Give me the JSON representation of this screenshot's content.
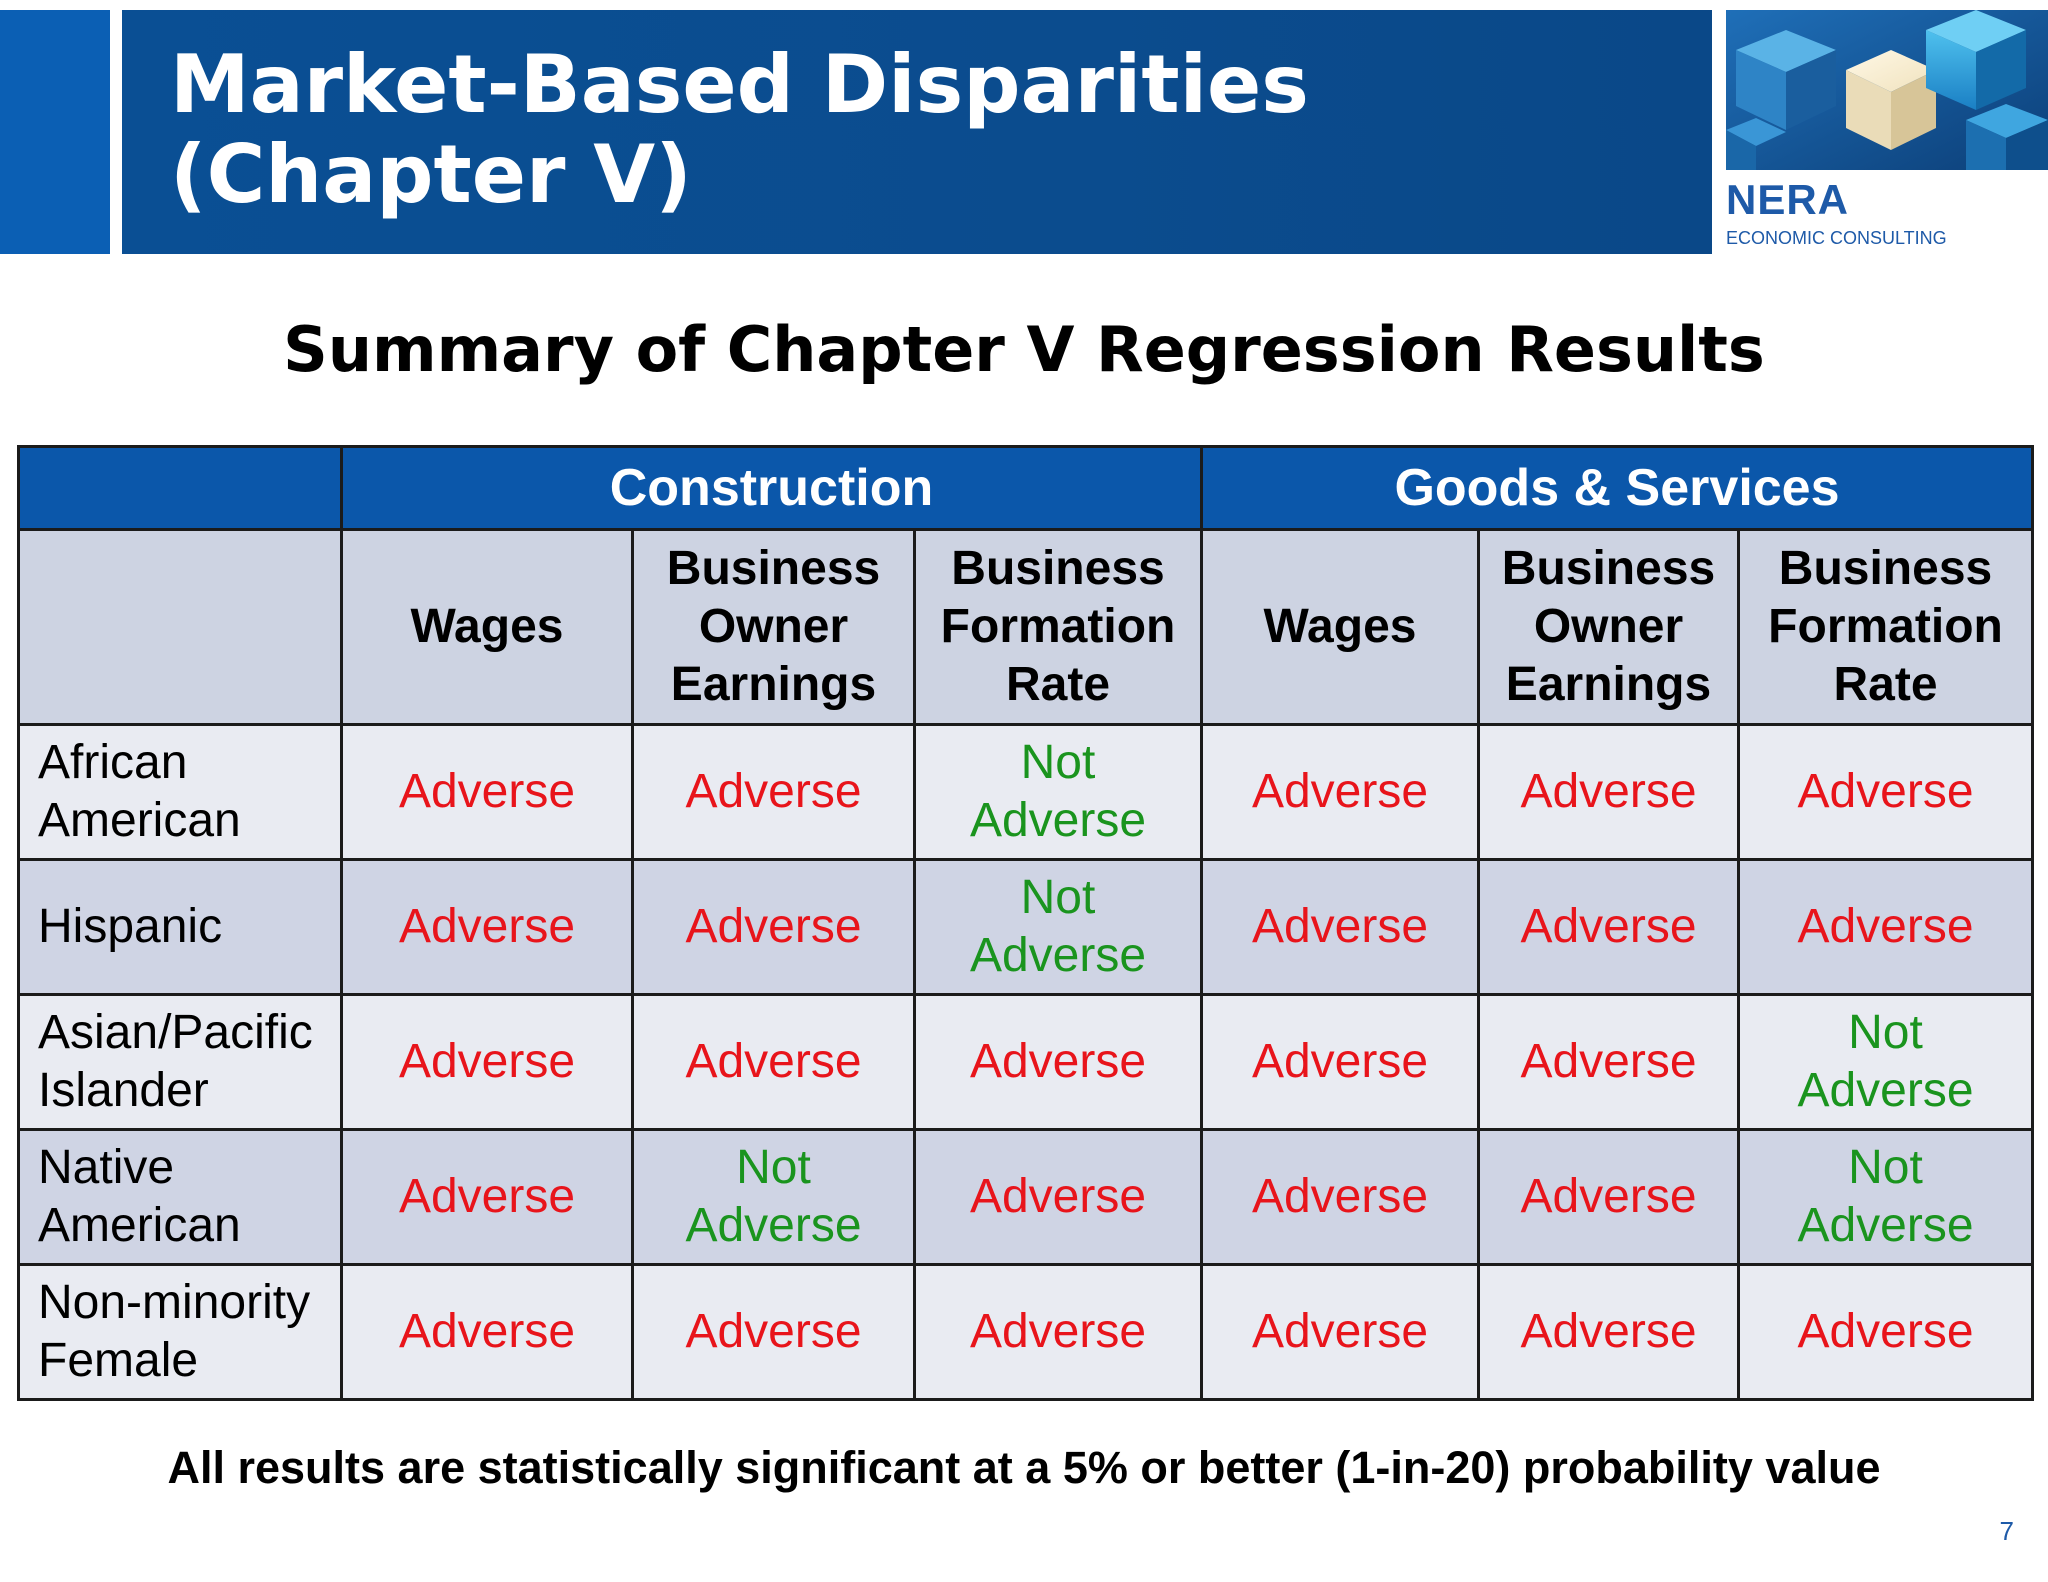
{
  "header": {
    "title": "Market-Based Disparities\n(Chapter V)",
    "accent_color": "#0b5fb4",
    "banner_color": "#0b4c8e"
  },
  "logo": {
    "name": "NERA",
    "tagline": "ECONOMIC CONSULTING",
    "art_icon": "blue-cubes-icon"
  },
  "subtitle": "Summary of Chapter V Regression Results",
  "table": {
    "group_headers": [
      {
        "label": ""
      },
      {
        "label": "Construction"
      },
      {
        "label": "Goods & Services"
      }
    ],
    "column_headers": [
      "",
      "Wages",
      "Business\nOwner\nEarnings",
      "Business\nFormation\nRate",
      "Wages",
      "Business\nOwner\nEarnings",
      "Business\nFormation\nRate"
    ],
    "rows": [
      {
        "label": "African\nAmerican",
        "cells": [
          {
            "text": "Adverse",
            "status": "adverse"
          },
          {
            "text": "Adverse",
            "status": "adverse"
          },
          {
            "text": "Not\nAdverse",
            "status": "not-adverse"
          },
          {
            "text": "Adverse",
            "status": "adverse"
          },
          {
            "text": "Adverse",
            "status": "adverse"
          },
          {
            "text": "Adverse",
            "status": "adverse"
          }
        ]
      },
      {
        "label": "Hispanic",
        "cells": [
          {
            "text": "Adverse",
            "status": "adverse"
          },
          {
            "text": "Adverse",
            "status": "adverse"
          },
          {
            "text": "Not\nAdverse",
            "status": "not-adverse"
          },
          {
            "text": "Adverse",
            "status": "adverse"
          },
          {
            "text": "Adverse",
            "status": "adverse"
          },
          {
            "text": "Adverse",
            "status": "adverse"
          }
        ]
      },
      {
        "label": "Asian/Pacific\nIslander",
        "cells": [
          {
            "text": "Adverse",
            "status": "adverse"
          },
          {
            "text": "Adverse",
            "status": "adverse"
          },
          {
            "text": "Adverse",
            "status": "adverse"
          },
          {
            "text": "Adverse",
            "status": "adverse"
          },
          {
            "text": "Adverse",
            "status": "adverse"
          },
          {
            "text": "Not\nAdverse",
            "status": "not-adverse"
          }
        ]
      },
      {
        "label": "Native\nAmerican",
        "cells": [
          {
            "text": "Adverse",
            "status": "adverse"
          },
          {
            "text": "Not\nAdverse",
            "status": "not-adverse"
          },
          {
            "text": "Adverse",
            "status": "adverse"
          },
          {
            "text": "Adverse",
            "status": "adverse"
          },
          {
            "text": "Adverse",
            "status": "adverse"
          },
          {
            "text": "Not\nAdverse",
            "status": "not-adverse"
          }
        ]
      },
      {
        "label": "Non-minority\nFemale",
        "cells": [
          {
            "text": "Adverse",
            "status": "adverse"
          },
          {
            "text": "Adverse",
            "status": "adverse"
          },
          {
            "text": "Adverse",
            "status": "adverse"
          },
          {
            "text": "Adverse",
            "status": "adverse"
          },
          {
            "text": "Adverse",
            "status": "adverse"
          },
          {
            "text": "Adverse",
            "status": "adverse"
          }
        ]
      }
    ],
    "colors": {
      "adverse": "#e8141b",
      "not_adverse": "#1a941e",
      "group_header_bg": "#0b57aa",
      "column_header_bg": "#cdd3e2",
      "row_odd_bg": "#e9ebf2",
      "row_even_bg": "#cfd4e4"
    }
  },
  "footnote": "All results are statistically significant at a 5% or better (1-in-20) probability value",
  "page_number": "7"
}
